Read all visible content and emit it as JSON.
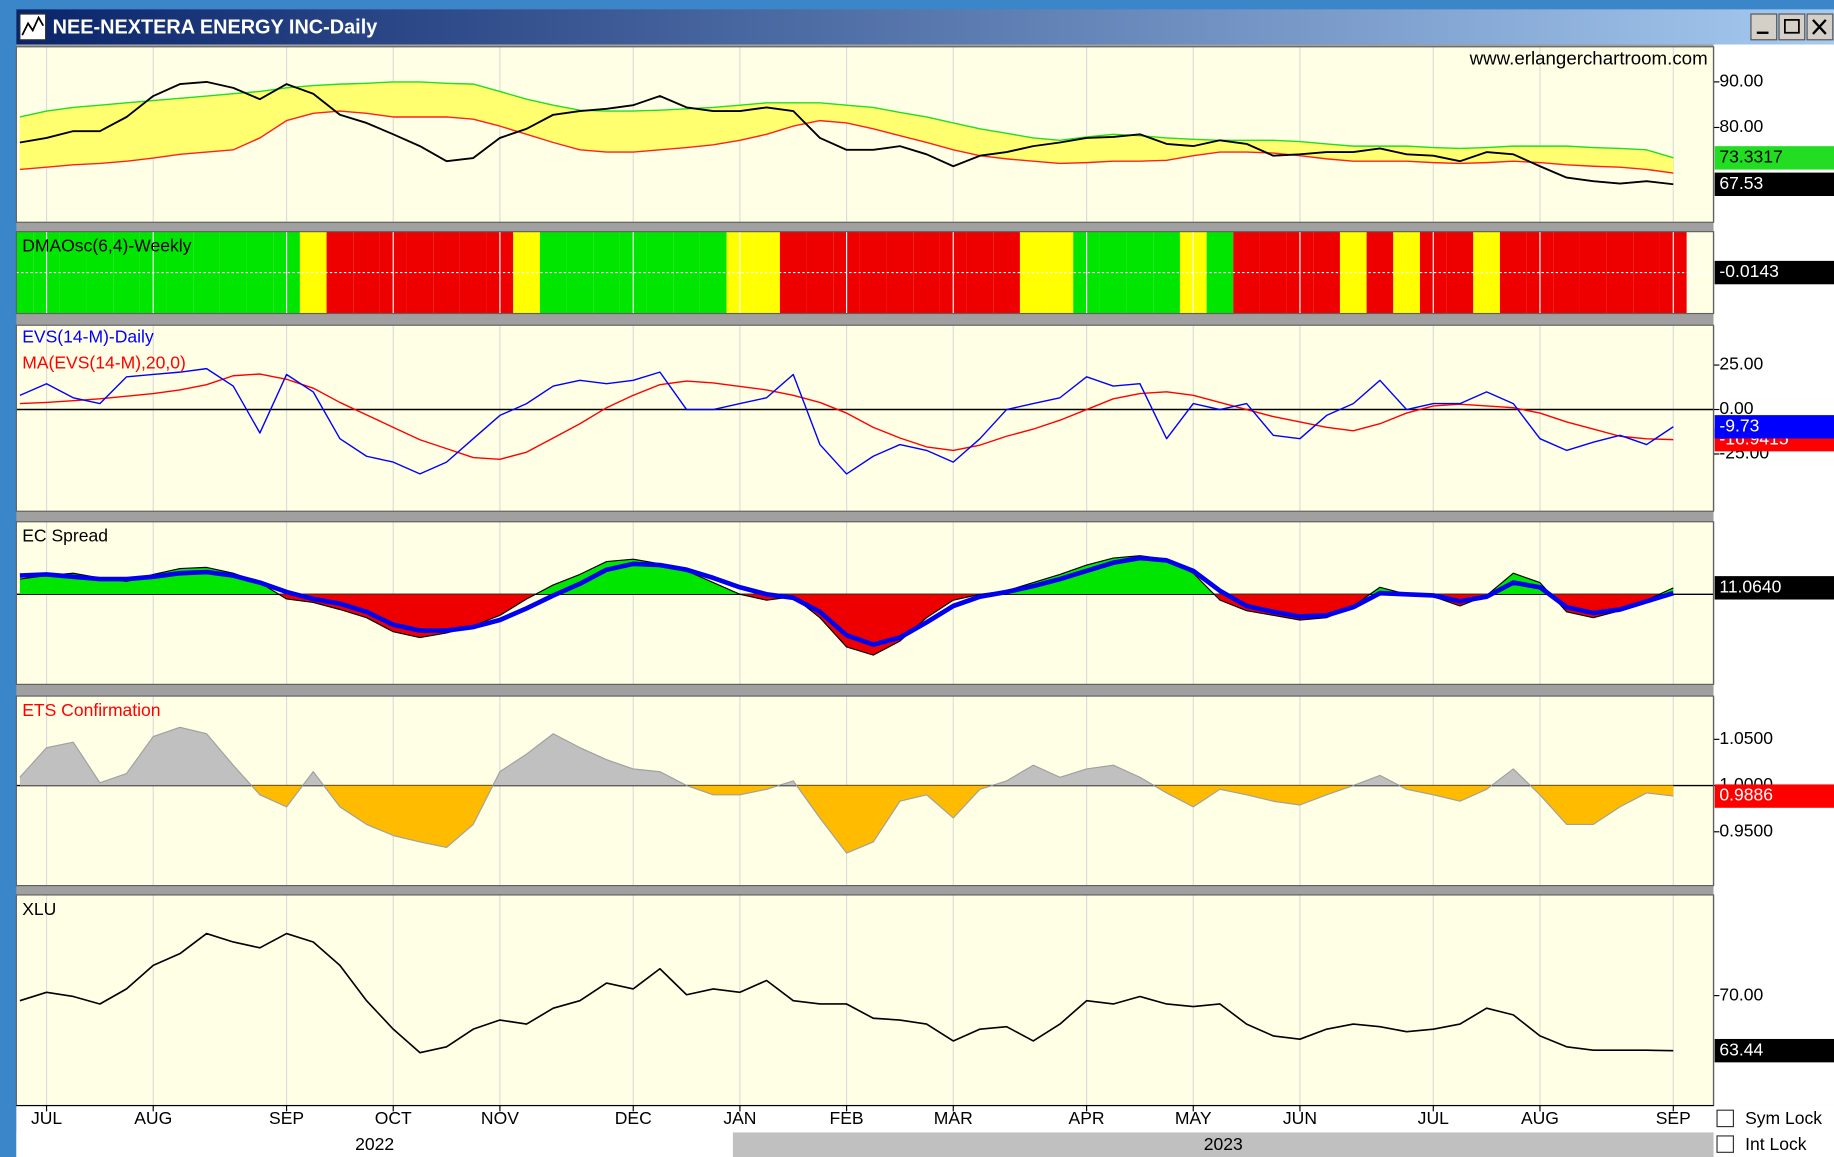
{
  "window": {
    "title": "NEE-NEXTERA ENERGY INC-Daily"
  },
  "watermark": "www.erlangerchartroom.com",
  "x_axis": {
    "categories": [
      null,
      "JUL",
      null,
      null,
      null,
      "AUG",
      null,
      null,
      null,
      null,
      "SEP",
      null,
      null,
      null,
      "OCT",
      null,
      null,
      null,
      "NOV",
      null,
      null,
      null,
      null,
      "DEC",
      null,
      null,
      null,
      "JAN",
      null,
      null,
      null,
      "FEB",
      null,
      null,
      null,
      "MAR",
      null,
      null,
      null,
      null,
      "APR",
      null,
      null,
      null,
      "MAY",
      null,
      null,
      null,
      "JUN",
      null,
      null,
      null,
      null,
      "JUL",
      null,
      null,
      null,
      "AUG",
      null,
      null,
      null,
      null,
      "SEP"
    ],
    "years": [
      "2022",
      "2023"
    ]
  },
  "controls": [
    "Sym Lock",
    "Int Lock"
  ],
  "chart_data": [
    {
      "type": "line",
      "ylim": [
        59.2,
        97.7
      ],
      "yticks": [
        {
          "value": 80,
          "label": "80.00"
        },
        {
          "value": 90,
          "label": "90.00"
        }
      ],
      "band_fill": "#ffff70",
      "series": [
        {
          "color": "#000000",
          "line_width": 1.6,
          "label_bg": "#000000",
          "label_color": "#ffffff",
          "values": [
            76.7,
            77.7,
            79.2,
            79.2,
            82.3,
            86.9,
            89.5,
            90.0,
            88.7,
            86.2,
            89.5,
            87.4,
            82.8,
            81.0,
            78.5,
            75.9,
            72.6,
            73.3,
            77.7,
            79.7,
            82.8,
            83.6,
            84.1,
            84.9,
            86.9,
            84.4,
            83.6,
            83.6,
            84.4,
            83.6,
            77.7,
            75.1,
            75.1,
            75.9,
            74.1,
            71.5,
            73.8,
            74.6,
            75.9,
            76.7,
            77.7,
            77.9,
            78.5,
            76.4,
            75.9,
            77.2,
            76.4,
            73.8,
            74.1,
            74.6,
            74.6,
            75.4,
            74.1,
            73.8,
            72.6,
            74.6,
            74.1,
            71.5,
            69.0,
            68.2,
            67.7,
            68.2,
            67.53
          ]
        },
        {
          "color": "#22dd22",
          "line_width": 1.2,
          "label_bg": "#22dd22",
          "label_color": "#000000",
          "values": [
            82.3,
            83.6,
            84.4,
            84.9,
            85.4,
            85.9,
            86.4,
            86.9,
            87.4,
            87.9,
            88.7,
            89.2,
            89.5,
            89.7,
            90.0,
            90.0,
            89.7,
            89.5,
            87.9,
            86.2,
            84.9,
            83.8,
            83.6,
            83.6,
            83.8,
            84.1,
            84.4,
            84.9,
            85.4,
            85.4,
            85.4,
            84.9,
            84.4,
            83.3,
            82.3,
            81.0,
            79.7,
            78.7,
            77.7,
            77.2,
            77.9,
            78.5,
            78.2,
            77.7,
            77.4,
            77.2,
            77.2,
            77.2,
            76.9,
            76.4,
            75.9,
            75.9,
            75.9,
            75.6,
            75.4,
            75.6,
            75.9,
            75.9,
            75.9,
            75.6,
            75.4,
            75.1,
            73.3317
          ]
        },
        {
          "color": "#ff2020",
          "line_width": 1.2,
          "values": [
            70.8,
            71.3,
            71.8,
            72.1,
            72.6,
            73.3,
            74.1,
            74.6,
            75.1,
            77.7,
            81.5,
            83.1,
            83.6,
            83.1,
            82.3,
            82.3,
            82.3,
            81.8,
            80.3,
            78.5,
            76.7,
            75.1,
            74.6,
            74.6,
            75.1,
            75.6,
            76.2,
            77.2,
            78.5,
            80.3,
            81.5,
            81.0,
            79.7,
            78.2,
            76.7,
            75.1,
            73.8,
            73.1,
            72.6,
            72.1,
            72.3,
            72.6,
            72.6,
            72.8,
            73.8,
            74.6,
            74.6,
            74.4,
            73.8,
            73.1,
            72.6,
            72.6,
            72.6,
            72.3,
            72.1,
            72.3,
            72.6,
            72.3,
            71.8,
            71.5,
            71.3,
            70.8,
            70.0
          ]
        }
      ]
    },
    {
      "type": "band",
      "title": "DMAOsc(6,4)-Weekly",
      "last_value": -0.0143,
      "colors": [
        "#00e600",
        "#00e600",
        "#00e600",
        "#00e600",
        "#00e600",
        "#00e600",
        "#00e600",
        "#00e600",
        "#00e600",
        "#00e600",
        "#00e600",
        "#ffff00",
        "#ee0000",
        "#ee0000",
        "#ee0000",
        "#ee0000",
        "#ee0000",
        "#ee0000",
        "#ee0000",
        "#ffff00",
        "#00e600",
        "#00e600",
        "#00e600",
        "#00e600",
        "#00e600",
        "#00e600",
        "#00e600",
        "#ffff00",
        "#ffff00",
        "#ee0000",
        "#ee0000",
        "#ee0000",
        "#ee0000",
        "#ee0000",
        "#ee0000",
        "#ee0000",
        "#ee0000",
        "#ee0000",
        "#ffff00",
        "#ffff00",
        "#00e600",
        "#00e600",
        "#00e600",
        "#00e600",
        "#ffff00",
        "#00e600",
        "#ee0000",
        "#ee0000",
        "#ee0000",
        "#ee0000",
        "#ffff00",
        "#ee0000",
        "#ffff00",
        "#ee0000",
        "#ee0000",
        "#ffff00",
        "#ee0000",
        "#ee0000",
        "#ee0000",
        "#ee0000",
        "#ee0000",
        "#ee0000",
        "#ee0000"
      ]
    },
    {
      "type": "line",
      "ylim": [
        -57.2,
        47.4
      ],
      "baseline": 0,
      "yticks": [
        {
          "value": 25,
          "label": "25.00"
        },
        {
          "value": 0,
          "label": "0.00"
        },
        {
          "value": -25,
          "label": "-25.00"
        }
      ],
      "series": [
        {
          "name": "EVS(14-M)-Daily",
          "color": "#0000ff",
          "line_width": 1.2,
          "label_bg": "#0000ff",
          "label_color": "#ffffff",
          "values": [
            7.9,
            14.5,
            6.6,
            3.3,
            18.4,
            19.7,
            21,
            23,
            13.2,
            -13.2,
            19.7,
            9.9,
            -16.4,
            -26.3,
            -29.6,
            -36.2,
            -29.6,
            -16.4,
            -3.3,
            3.3,
            13.2,
            16.4,
            14.5,
            16.4,
            21,
            0,
            0,
            3.3,
            6.6,
            19.7,
            -19.7,
            -36.2,
            -26.3,
            -19.7,
            -23,
            -29.6,
            -16.4,
            0,
            3.3,
            6.6,
            18.4,
            13.2,
            14.5,
            -16.4,
            3.3,
            0,
            3.3,
            -14.5,
            -16.4,
            -3.3,
            3.3,
            16.4,
            0,
            3.3,
            3.3,
            9.9,
            3.3,
            -16.4,
            -23,
            -18.4,
            -14.5,
            -19.7,
            -9.73
          ]
        },
        {
          "name": "MA(EVS(14-M),20,0)",
          "color": "#ff0000",
          "line_width": 1.2,
          "label_bg": "#ff0000",
          "label_color": "#ffffff",
          "values": [
            3.3,
            4,
            5,
            6,
            7.5,
            9,
            11,
            14,
            19,
            20,
            17,
            12,
            4,
            -3,
            -10,
            -17,
            -22,
            -27,
            -28,
            -24,
            -16,
            -8,
            1,
            8,
            14,
            16,
            15,
            13,
            11,
            8,
            4,
            -2,
            -10,
            -16,
            -21,
            -23,
            -20,
            -15,
            -11,
            -6,
            0,
            6,
            9,
            10,
            8,
            4,
            0,
            -4,
            -7,
            -10,
            -12,
            -8,
            -2,
            2,
            3,
            2,
            1,
            -2,
            -7,
            -11,
            -15,
            -16.5,
            -16.9415
          ]
        }
      ]
    },
    {
      "type": "area",
      "title": "EC Spread",
      "ylim": [
        -154,
        124
      ],
      "baseline": 0,
      "series": [
        {
          "color": "#0000ee",
          "line_width": 4,
          "values": [
            32,
            34,
            30,
            26,
            26,
            30,
            36,
            38,
            32,
            20,
            4,
            -8,
            -16,
            -30,
            -52,
            -62,
            -62,
            -56,
            -44,
            -24,
            -2,
            18,
            42,
            52,
            50,
            42,
            28,
            12,
            0,
            -6,
            -30,
            -70,
            -86,
            -74,
            -48,
            -20,
            -4,
            4,
            14,
            26,
            40,
            54,
            62,
            58,
            40,
            6,
            -20,
            -30,
            -38,
            -36,
            -22,
            2,
            0,
            -2,
            -12,
            -4,
            20,
            12,
            -22,
            -32,
            -26,
            -12,
            2
          ]
        },
        {
          "color": "#000000",
          "line_width": 1,
          "fill_pos": "#00e600",
          "fill_neg": "#ee0000",
          "label_bg": "#000000",
          "label_color": "#ffffff",
          "values": [
            26,
            32,
            36,
            28,
            22,
            34,
            44,
            46,
            36,
            20,
            -8,
            -14,
            -26,
            -40,
            -64,
            -74,
            -66,
            -54,
            -36,
            -8,
            16,
            34,
            56,
            60,
            52,
            40,
            20,
            0,
            -10,
            -4,
            -40,
            -90,
            -104,
            -80,
            -40,
            -10,
            0,
            6,
            20,
            34,
            50,
            62,
            66,
            60,
            36,
            -10,
            -28,
            -36,
            -44,
            -40,
            -20,
            12,
            0,
            -4,
            -20,
            -2,
            36,
            20,
            -30,
            -40,
            -28,
            -10,
            11.064
          ],
          "value_labels": [
            null,
            null,
            null,
            null,
            null,
            null,
            null,
            null,
            null,
            null,
            null,
            null,
            null,
            null,
            null,
            null,
            null,
            null,
            null,
            null,
            null,
            null,
            null,
            null,
            null,
            null,
            null,
            null,
            null,
            null,
            null,
            null,
            null,
            null,
            null,
            null,
            null,
            null,
            null,
            null,
            null,
            null,
            null,
            null,
            null,
            null,
            null,
            null,
            null,
            null,
            null,
            null,
            null,
            null,
            null,
            null,
            null,
            null,
            null,
            null,
            null,
            null,
            "11.0640"
          ]
        }
      ]
    },
    {
      "type": "area",
      "title": "ETS Confirmation",
      "title_color": "#ff0000",
      "ylim": [
        0.8918,
        1.0968
      ],
      "baseline": 1,
      "yticks": [
        {
          "value": 1.05,
          "label": "1.0500"
        },
        {
          "value": 1,
          "label": "1.0000"
        },
        {
          "value": 0.95,
          "label": "0.9500"
        }
      ],
      "series": [
        {
          "color": "#a0a0a0",
          "line_width": 1,
          "fill_pos": "#c0c0c0",
          "fill_neg": "#ffbb00",
          "label_bg": "#ff0000",
          "label_color": "#ffffff",
          "values": [
            1.009,
            1.041,
            1.047,
            1.003,
            1.013,
            1.053,
            1.063,
            1.056,
            1.022,
            0.99,
            0.977,
            1.015,
            0.977,
            0.958,
            0.946,
            0.939,
            0.933,
            0.958,
            1.015,
            1.034,
            1.056,
            1.041,
            1.028,
            1.018,
            1.015,
            1.0,
            0.99,
            0.99,
            0.996,
            1.005,
            0.965,
            0.927,
            0.939,
            0.983,
            0.99,
            0.965,
            0.996,
            1.005,
            1.022,
            1.009,
            1.018,
            1.022,
            1.009,
            0.992,
            0.977,
            0.996,
            0.99,
            0.983,
            0.979,
            0.99,
            1.0,
            1.011,
            0.996,
            0.99,
            0.983,
            0.996,
            1.018,
            0.99,
            0.958,
            0.958,
            0.977,
            0.992,
            0.9886
          ]
        }
      ]
    },
    {
      "type": "line",
      "title": "XLU",
      "ylim": [
        56.9,
        82.0
      ],
      "yticks": [
        {
          "value": 70,
          "label": "70.00"
        }
      ],
      "series": [
        {
          "color": "#000000",
          "line_width": 1.4,
          "label_bg": "#000000",
          "label_color": "#ffffff",
          "values": [
            69.4,
            70.4,
            69.9,
            69.0,
            70.8,
            73.6,
            75.0,
            77.4,
            76.4,
            75.7,
            77.4,
            76.4,
            73.6,
            69.4,
            66.0,
            63.2,
            63.9,
            66.0,
            67.1,
            66.6,
            68.5,
            69.4,
            71.5,
            70.8,
            73.2,
            70.1,
            70.8,
            70.4,
            71.8,
            69.4,
            69.0,
            69.0,
            67.3,
            67.1,
            66.6,
            64.6,
            66.0,
            66.3,
            64.6,
            66.6,
            69.4,
            69.0,
            69.9,
            69.0,
            68.7,
            69.0,
            66.6,
            65.2,
            64.8,
            66.0,
            66.6,
            66.3,
            65.7,
            66.0,
            66.6,
            68.5,
            67.7,
            65.2,
            63.9,
            63.5,
            63.5,
            63.5,
            63.44
          ]
        }
      ]
    }
  ]
}
